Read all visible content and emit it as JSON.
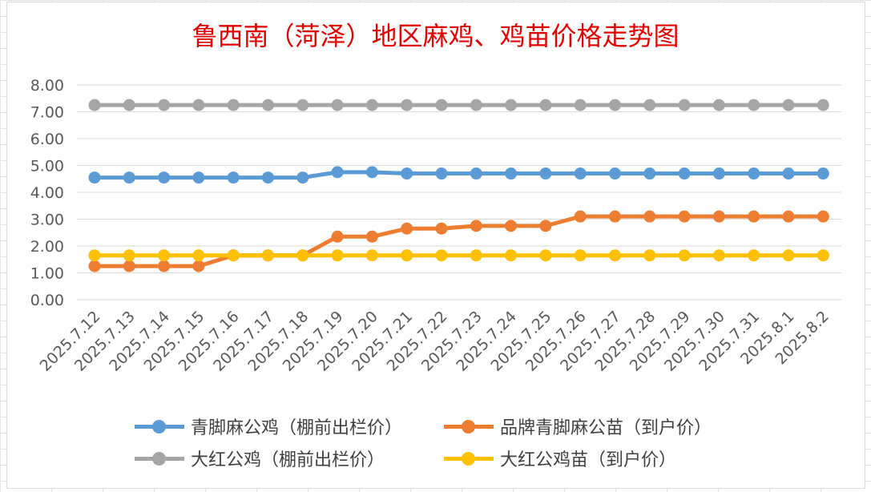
{
  "chart_data": {
    "type": "line",
    "title": "鲁西南（菏泽）地区麻鸡、鸡苗价格走势图",
    "xlabel": "",
    "ylabel": "",
    "ylim": [
      0,
      8
    ],
    "y_ticks": [
      "0.00",
      "1.00",
      "2.00",
      "3.00",
      "4.00",
      "5.00",
      "6.00",
      "7.00",
      "8.00"
    ],
    "grid": true,
    "legend_position": "bottom",
    "categories": [
      "2025.7.12",
      "2025.7.13",
      "2025.7.14",
      "2025.7.15",
      "2025.7.16",
      "2025.7.17",
      "2025.7.18",
      "2025.7.19",
      "2025.7.20",
      "2025.7.21",
      "2025.7.22",
      "2025.7.23",
      "2025.7.24",
      "2025.7.25",
      "2025.7.26",
      "2025.7.27",
      "2025.7.28",
      "2025.7.29",
      "2025.7.30",
      "2025.7.31",
      "2025.8.1",
      "2025.8.2"
    ],
    "series": [
      {
        "name": "青脚麻公鸡（棚前出栏价）",
        "color": "#5b9bd5",
        "values": [
          4.55,
          4.55,
          4.55,
          4.55,
          4.55,
          4.55,
          4.55,
          4.75,
          4.75,
          4.7,
          4.7,
          4.7,
          4.7,
          4.7,
          4.7,
          4.7,
          4.7,
          4.7,
          4.7,
          4.7,
          4.7,
          4.7
        ]
      },
      {
        "name": "品牌青脚麻公苗（到户价）",
        "color": "#ed7d31",
        "values": [
          1.25,
          1.25,
          1.25,
          1.25,
          1.65,
          1.65,
          1.65,
          2.35,
          2.35,
          2.65,
          2.65,
          2.75,
          2.75,
          2.75,
          3.1,
          3.1,
          3.1,
          3.1,
          3.1,
          3.1,
          3.1,
          3.1
        ]
      },
      {
        "name": "大红公鸡（棚前出栏价）",
        "color": "#a5a5a5",
        "values": [
          7.25,
          7.25,
          7.25,
          7.25,
          7.25,
          7.25,
          7.25,
          7.25,
          7.25,
          7.25,
          7.25,
          7.25,
          7.25,
          7.25,
          7.25,
          7.25,
          7.25,
          7.25,
          7.25,
          7.25,
          7.25,
          7.25
        ]
      },
      {
        "name": "大红公鸡苗（到户价）",
        "color": "#ffc000",
        "values": [
          1.65,
          1.65,
          1.65,
          1.65,
          1.65,
          1.65,
          1.65,
          1.65,
          1.65,
          1.65,
          1.65,
          1.65,
          1.65,
          1.65,
          1.65,
          1.65,
          1.65,
          1.65,
          1.65,
          1.65,
          1.65,
          1.65
        ]
      }
    ]
  }
}
